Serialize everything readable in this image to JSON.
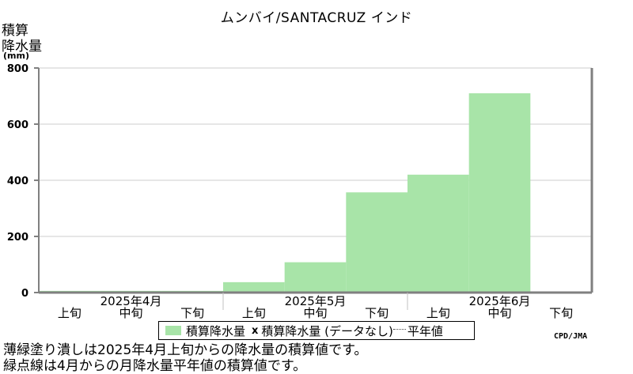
{
  "title": "ムンバイ/SANTACRUZ インド",
  "y_axis_label_line1": "積算",
  "y_axis_label_line2": "降水量",
  "y_axis_unit": "(mm)",
  "credit": "CPD/JMA",
  "legend": {
    "item1": "積算降水量",
    "item2_mark": "x",
    "item2": "積算降水量 (データなし)",
    "item3": "平年値"
  },
  "notes": [
    "薄緑塗り潰しは2025年4月上旬からの降水量の積算値です。",
    "緑点線は4月からの月降水量平年値の積算値です。"
  ],
  "colors": {
    "bar": "#a8e4a8",
    "grid": "#cccccc",
    "axis": "#808080"
  },
  "chart_data": {
    "type": "bar",
    "categories": [
      "上旬",
      "中旬",
      "下旬",
      "上旬",
      "中旬",
      "下旬",
      "上旬",
      "中旬",
      "下旬"
    ],
    "months": [
      "2025年4月",
      "2025年5月",
      "2025年6月"
    ],
    "values": [
      6,
      6,
      6,
      37,
      108,
      357,
      420,
      710,
      null
    ],
    "ylim": [
      0,
      800
    ],
    "yticks": [
      0,
      200,
      400,
      600,
      800
    ],
    "grid": true,
    "legend_position": "bottom"
  }
}
